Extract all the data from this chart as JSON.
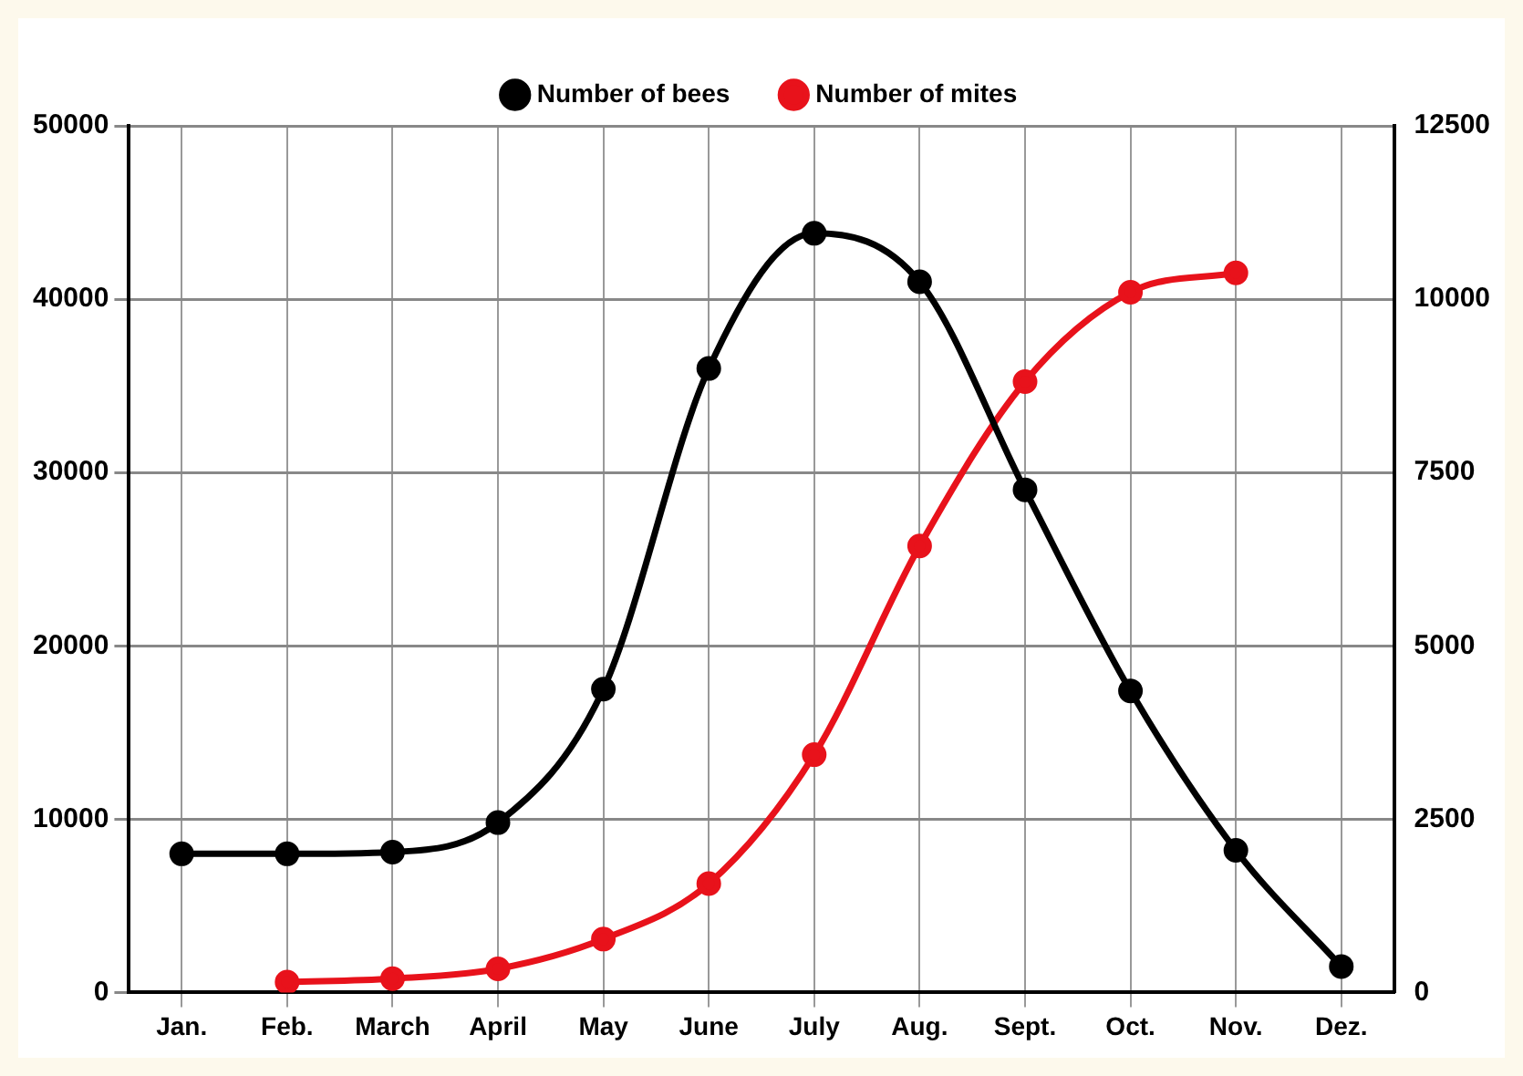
{
  "chart_data": {
    "type": "line",
    "categories": [
      "Jan.",
      "Feb.",
      "March",
      "April",
      "May",
      "June",
      "July",
      "Aug.",
      "Sept.",
      "Oct.",
      "Nov.",
      "Dez."
    ],
    "series": [
      {
        "name": "Number of bees",
        "color": "#000000",
        "values": [
          8000,
          8000,
          8100,
          9800,
          17500,
          36000,
          43800,
          41000,
          29000,
          17400,
          8200,
          1500
        ]
      },
      {
        "name": "Number of mites",
        "color": "#e8121b",
        "axis": "y2",
        "values": [
          null,
          150,
          200,
          340,
          770,
          1570,
          3430,
          6440,
          8810,
          10100,
          10380,
          null
        ]
      }
    ],
    "ylim": [
      0,
      50000
    ],
    "yticks": [
      0,
      10000,
      20000,
      30000,
      40000,
      50000
    ],
    "y2lim": [
      0,
      12500
    ],
    "y2ticks": [
      0,
      2500,
      5000,
      7500,
      10000,
      12500
    ],
    "grid": true,
    "legend": "top",
    "marker": "circle",
    "line_style": "solid"
  }
}
